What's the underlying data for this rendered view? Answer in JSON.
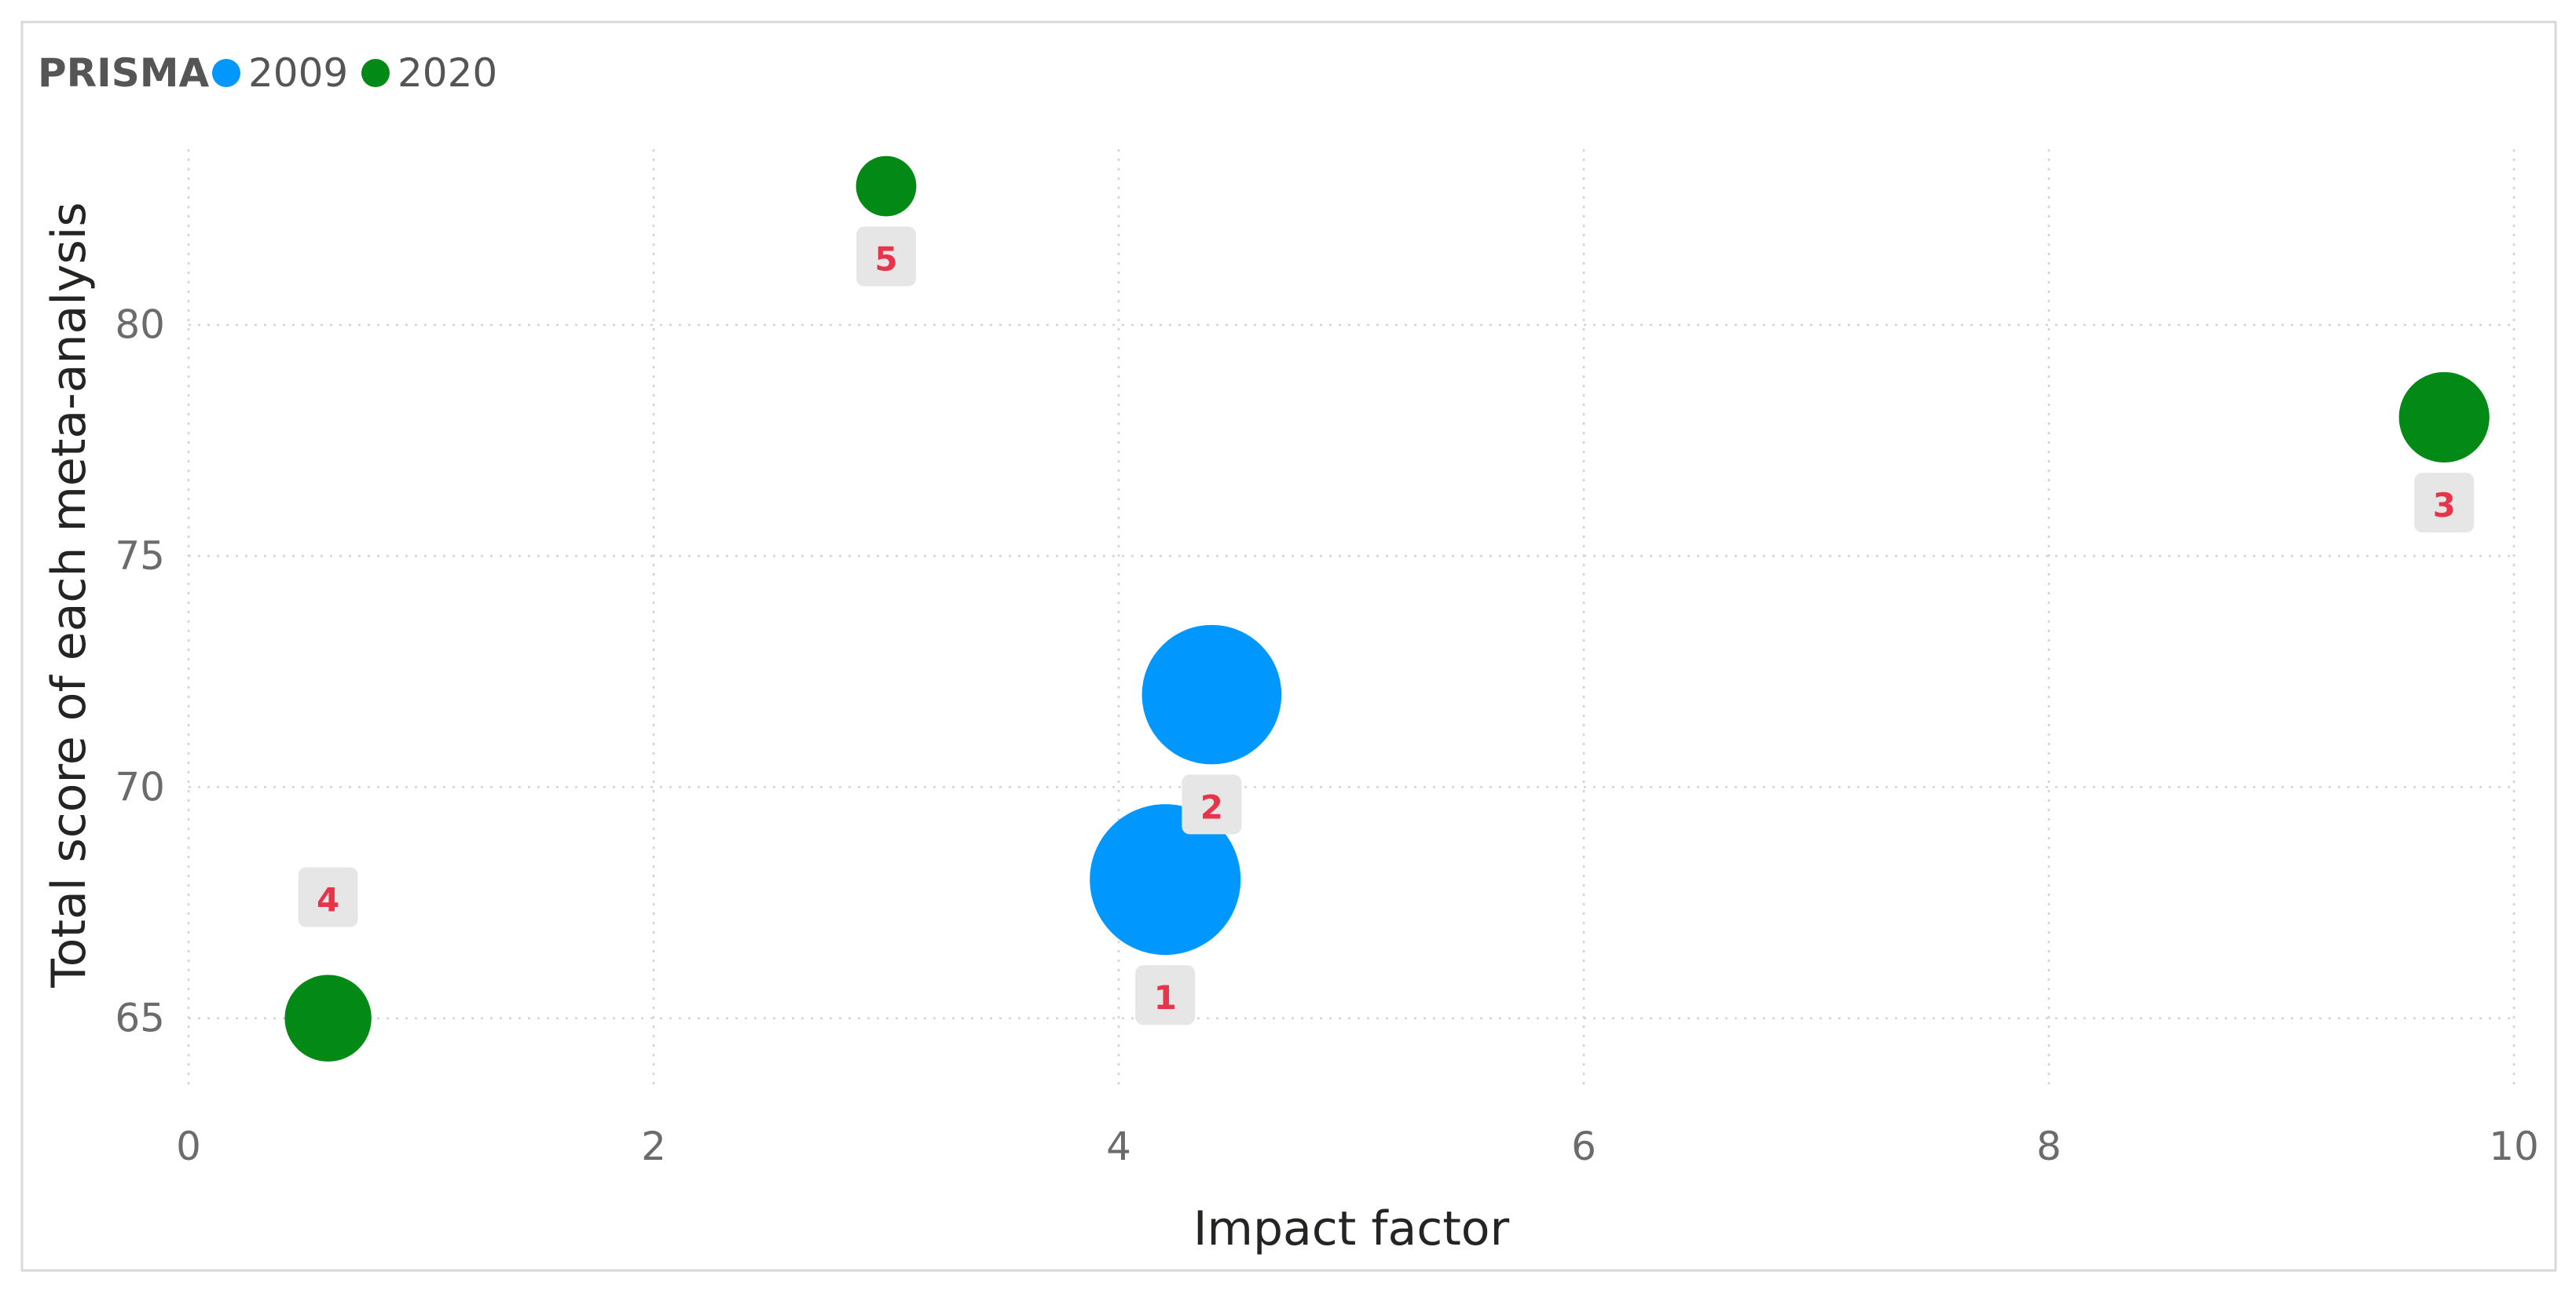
{
  "chart_data": {
    "type": "scatter",
    "title": "",
    "xlabel": "Impact factor",
    "ylabel": "Total score of each meta-analysis",
    "xlim": [
      0,
      10
    ],
    "ylim": [
      63.5,
      83.8
    ],
    "x_ticks": [
      "0",
      "2",
      "4",
      "6",
      "8",
      "10"
    ],
    "x_tick_values": [
      0,
      2,
      4,
      6,
      8,
      10
    ],
    "y_ticks": [
      "65",
      "70",
      "75",
      "80"
    ],
    "y_tick_values": [
      65,
      70,
      75,
      80
    ],
    "grid": true,
    "legend": {
      "title": "PRISMA",
      "placement": "top-left",
      "entries": [
        {
          "name": "2009",
          "color": "#0098FF"
        },
        {
          "name": "2020",
          "color": "#038A16"
        }
      ]
    },
    "series": [
      {
        "name": "2009",
        "color": "#0098FF",
        "points": [
          {
            "x": 4.2,
            "y": 68,
            "label": "1",
            "size": 2.0
          },
          {
            "x": 4.4,
            "y": 72,
            "label": "2",
            "size": 1.85
          }
        ]
      },
      {
        "name": "2020",
        "color": "#038A16",
        "points": [
          {
            "x": 9.7,
            "y": 78,
            "label": "3",
            "size": 1.2
          },
          {
            "x": 0.6,
            "y": 65,
            "label": "4",
            "size": 1.15
          },
          {
            "x": 3.0,
            "y": 83,
            "label": "5",
            "size": 0.8
          }
        ]
      }
    ],
    "data_label_color": "#E8344A"
  }
}
